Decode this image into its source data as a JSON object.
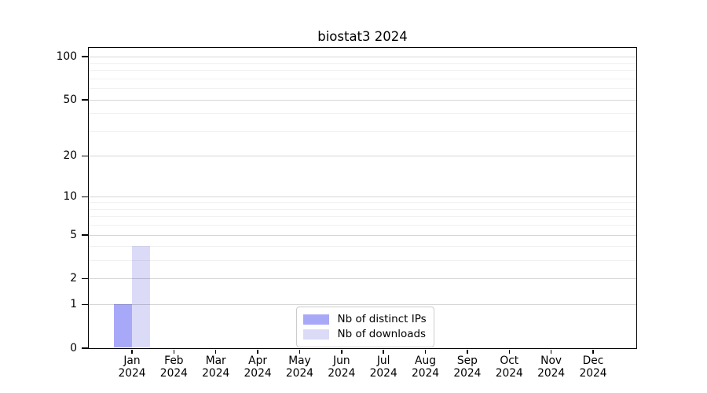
{
  "chart_data": {
    "type": "bar",
    "title": "biostat3 2024",
    "categories": [
      "Jan",
      "Feb",
      "Mar",
      "Apr",
      "May",
      "Jun",
      "Jul",
      "Aug",
      "Sep",
      "Oct",
      "Nov",
      "Dec"
    ],
    "x_year_label": "2024",
    "series": [
      {
        "name": "Nb of distinct IPs",
        "color": "#a8a8f8",
        "values": [
          1,
          0,
          0,
          0,
          0,
          0,
          0,
          0,
          0,
          0,
          0,
          0
        ]
      },
      {
        "name": "Nb of downloads",
        "color": "#dbdbf8",
        "values": [
          4,
          0,
          0,
          0,
          0,
          0,
          0,
          0,
          0,
          0,
          0,
          0
        ]
      }
    ],
    "yscale": "log1p",
    "ylim": [
      0,
      115
    ],
    "yticks": [
      0,
      1,
      2,
      5,
      10,
      20,
      50,
      100
    ],
    "minor_yticks": [
      3,
      4,
      6,
      7,
      8,
      9,
      30,
      40,
      60,
      70,
      80,
      90
    ],
    "xlabel": "",
    "ylabel": "",
    "grid": "horizontal",
    "grid_above_bars": true,
    "legend_position": "lower center",
    "colors": {
      "spine": "#000000",
      "text": "#000000",
      "background": "#ffffff",
      "major_grid": "#d6d6d6",
      "minor_grid": "#f1f1f1",
      "legend_border": "#cccccc",
      "legend_background": "#ffffff"
    }
  }
}
